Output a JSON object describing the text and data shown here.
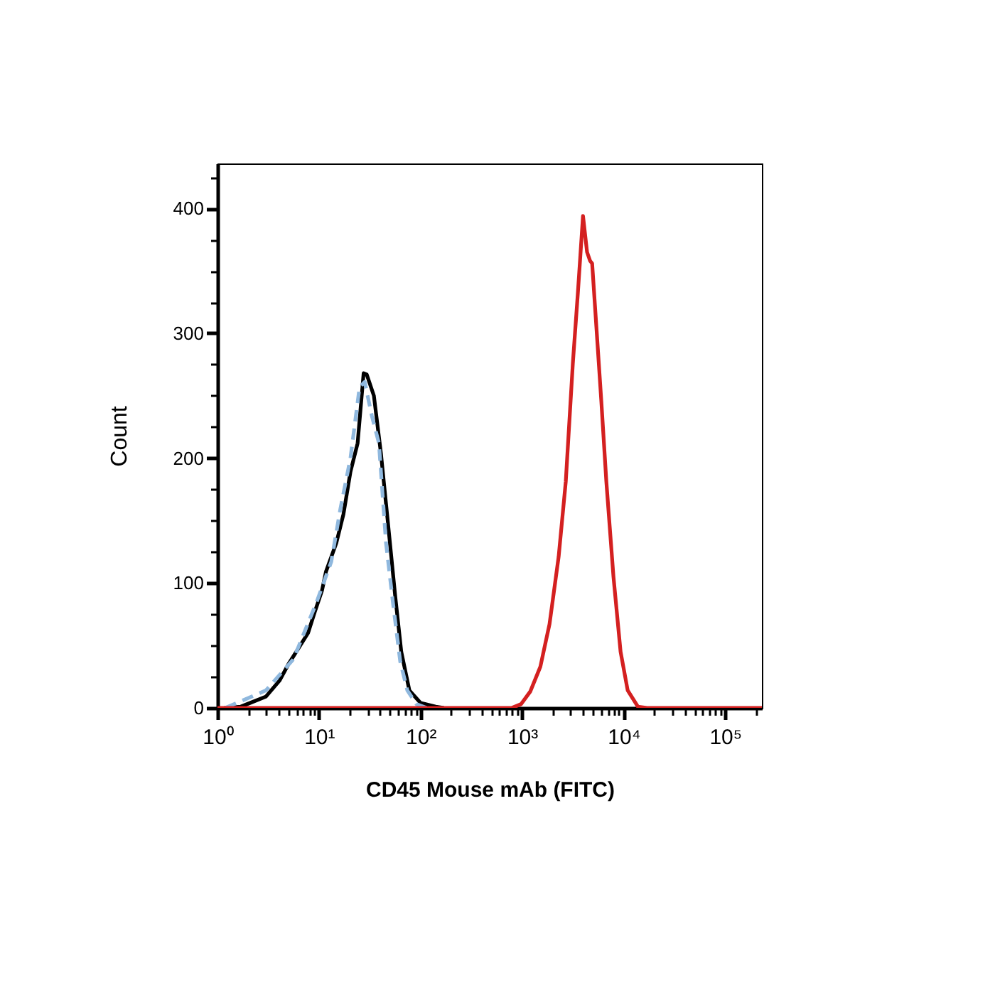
{
  "chart_data": {
    "type": "line",
    "xlabel": "CD45 Mouse mAb (FITC)",
    "ylabel": "Count",
    "log": "x",
    "legend": false,
    "grid": false,
    "marker": "none",
    "xlim": [
      1,
      230000
    ],
    "ylim": [
      0,
      436
    ],
    "xticks": [
      {
        "value": 1,
        "label": "10⁰"
      },
      {
        "value": 10,
        "label": "10¹"
      },
      {
        "value": 100,
        "label": "10²"
      },
      {
        "value": 1000,
        "label": "10³"
      },
      {
        "value": 10000,
        "label": "10⁴"
      },
      {
        "value": 100000,
        "label": "10⁵"
      },
      {
        "value": 2,
        "label": null
      },
      {
        "value": 3,
        "label": null
      },
      {
        "value": 4,
        "label": null
      },
      {
        "value": 5,
        "label": null
      },
      {
        "value": 6,
        "label": null
      },
      {
        "value": 7,
        "label": null
      },
      {
        "value": 8,
        "label": null
      },
      {
        "value": 9,
        "label": null
      },
      {
        "value": 20,
        "label": null
      },
      {
        "value": 30,
        "label": null
      },
      {
        "value": 40,
        "label": null
      },
      {
        "value": 50,
        "label": null
      },
      {
        "value": 60,
        "label": null
      },
      {
        "value": 70,
        "label": null
      },
      {
        "value": 80,
        "label": null
      },
      {
        "value": 90,
        "label": null
      },
      {
        "value": 200,
        "label": null
      },
      {
        "value": 300,
        "label": null
      },
      {
        "value": 400,
        "label": null
      },
      {
        "value": 500,
        "label": null
      },
      {
        "value": 600,
        "label": null
      },
      {
        "value": 700,
        "label": null
      },
      {
        "value": 800,
        "label": null
      },
      {
        "value": 900,
        "label": null
      },
      {
        "value": 2000,
        "label": null
      },
      {
        "value": 3000,
        "label": null
      },
      {
        "value": 4000,
        "label": null
      },
      {
        "value": 5000,
        "label": null
      },
      {
        "value": 6000,
        "label": null
      },
      {
        "value": 7000,
        "label": null
      },
      {
        "value": 8000,
        "label": null
      },
      {
        "value": 9000,
        "label": null
      },
      {
        "value": 20000,
        "label": null
      },
      {
        "value": 30000,
        "label": null
      },
      {
        "value": 40000,
        "label": null
      },
      {
        "value": 50000,
        "label": null
      },
      {
        "value": 60000,
        "label": null
      },
      {
        "value": 70000,
        "label": null
      },
      {
        "value": 80000,
        "label": null
      },
      {
        "value": 90000,
        "label": null
      },
      {
        "value": 200000,
        "label": null
      }
    ],
    "yticks": [
      0,
      100,
      200,
      300,
      400,
      {
        "value": 25,
        "label": null
      },
      {
        "value": 50,
        "label": null
      },
      {
        "value": 75,
        "label": null
      },
      {
        "value": 125,
        "label": null
      },
      {
        "value": 150,
        "label": null
      },
      {
        "value": 175,
        "label": null
      },
      {
        "value": 225,
        "label": null
      },
      {
        "value": 250,
        "label": null
      },
      {
        "value": 275,
        "label": null
      },
      {
        "value": 325,
        "label": null
      },
      {
        "value": 350,
        "label": null
      },
      {
        "value": 375,
        "label": null
      },
      {
        "value": 425,
        "label": null
      }
    ],
    "series": [
      {
        "color": "#000000",
        "line_style": "solid",
        "x": [
          1.17,
          1.7,
          2.1,
          3.0,
          4.1,
          5.0,
          6.2,
          7.8,
          9.1,
          10.7,
          11.7,
          14.8,
          17.4,
          20.4,
          24,
          27.5,
          29.5,
          34.7,
          40.7,
          47.9,
          56.2,
          64.6,
          77.6,
          100,
          141,
          170
        ],
        "values": [
          0,
          1,
          4,
          9,
          22,
          35,
          47,
          60,
          77,
          94,
          109,
          132,
          155,
          189,
          212,
          268,
          267,
          250,
          204,
          147,
          90,
          45,
          14,
          4,
          1,
          0
        ]
      },
      {
        "color": "#8fb8de",
        "line_style": "dashed",
        "x": [
          1.2,
          3.0,
          5.6,
          9.5,
          13.2,
          16.2,
          20.4,
          25.1,
          28.2,
          33.1,
          38.9,
          45.7,
          53.7,
          63.1,
          74.1,
          91.2,
          115
        ],
        "values": [
          0,
          14,
          39,
          85,
          117,
          159,
          200,
          257,
          261,
          234,
          212,
          132,
          83,
          37,
          14,
          3,
          0
        ]
      },
      {
        "color": "#d42020",
        "line_style": "solid",
        "x": [
          1,
          794,
          977,
          1202,
          1514,
          1862,
          2291,
          2692,
          3162,
          3548,
          3981,
          4365,
          4677,
          4898,
          5495,
          6026,
          6761,
          7943,
          9333,
          10965,
          13804,
          16982,
          230000
        ],
        "values": [
          0,
          0,
          3,
          13,
          33,
          67,
          121,
          181,
          276,
          333,
          394,
          365,
          358,
          356,
          295,
          246,
          181,
          105,
          45,
          14,
          1,
          0,
          0
        ]
      }
    ]
  }
}
